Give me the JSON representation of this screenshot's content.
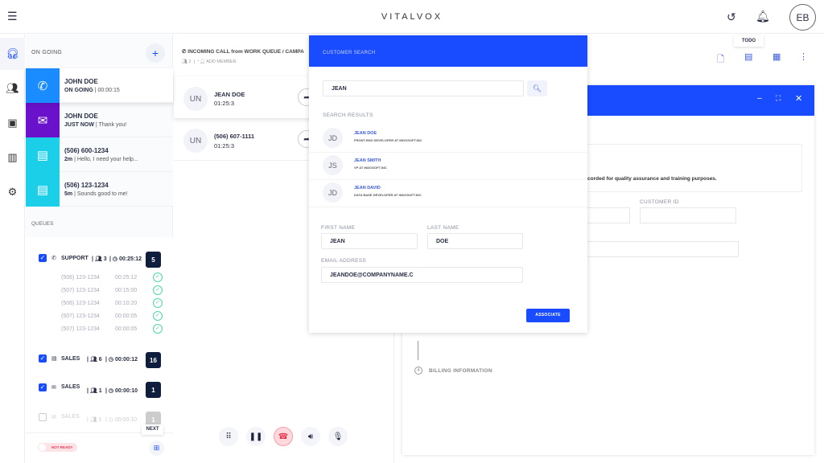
{
  "app": {
    "title": "VITALVOX",
    "avatar": "EB",
    "tooltip_todo": "TODO"
  },
  "ongoing": {
    "title": "ON GOING",
    "items": [
      {
        "name": "JOHN DOE",
        "status": "ON GOING",
        "detail": "00:00:15",
        "color": "#1a8cff",
        "icon": "phone-icon"
      },
      {
        "name": "JOHN DOE",
        "status": "JUST NOW",
        "detail": "Thank you!",
        "color": "#6a11cb",
        "icon": "mail-icon"
      },
      {
        "name": "(506) 600-1234",
        "status": "2m",
        "detail": "Hello, I need your help...",
        "color": "#1ccfe8",
        "icon": "chat-icon"
      },
      {
        "name": "(506) 123-1234",
        "status": "5m",
        "detail": "Sounds good to me!",
        "color": "#1ccfe8",
        "icon": "chat-icon"
      }
    ]
  },
  "queues": {
    "title": "QUEUES",
    "rows": [
      {
        "name": "SUPPORT",
        "agents": "3",
        "time": "00:25:12",
        "count": "5",
        "checked": true
      },
      {
        "name": "SALES",
        "agents": "6",
        "time": "00:00:12",
        "count": "16",
        "checked": true
      },
      {
        "name": "SALES",
        "agents": "1",
        "time": "00:00:10",
        "count": "1",
        "checked": true
      },
      {
        "name": "SALES",
        "agents": "1",
        "time": "00:00:10",
        "count": "1",
        "checked": false
      }
    ],
    "support_calls": [
      {
        "phone": "(506) 123-1234",
        "time": "00:25:12"
      },
      {
        "phone": "(507) 123-1234",
        "time": "00:15:00"
      },
      {
        "phone": "(506) 123-1234",
        "time": "00:10:20"
      },
      {
        "phone": "(507) 123-1234",
        "time": "00:00:05"
      },
      {
        "phone": "(507) 123-1234",
        "time": "00:00:05"
      }
    ]
  },
  "status": {
    "toggle": "NOT READY",
    "next": "NEXT"
  },
  "call": {
    "header": "INCOMING CALL from WORK QUEUE / CAMPA",
    "members": "2",
    "add_member": "ADD MEMBER",
    "participants": [
      {
        "initials": "UN",
        "name": "JEAN DOE",
        "time": "01:25:3"
      },
      {
        "initials": "UN",
        "name": "(506) 607-1111",
        "time": "01:25:3"
      }
    ]
  },
  "search": {
    "title": "CUSTOMER SEARCH",
    "query": "JEAN",
    "results_label": "SEARCH RESULTS",
    "results": [
      {
        "initials": "JD",
        "name": "JEAN DOE",
        "desc": "FRONT-END DEVELOPER AT INDOSOFT.INC"
      },
      {
        "initials": "JS",
        "name": "JEAN SMITH",
        "desc": "VP AT INDOSOFT.INC"
      },
      {
        "initials": "JD",
        "name": "JEAN DAVID",
        "desc": "DATA BASE DEVELOPER AT INDOSOFT.INC"
      }
    ],
    "first_name_label": "FIRST NAME",
    "first_name": "JEAN",
    "last_name_label": "LAST NAME",
    "last_name": "DOE",
    "email_label": "EMAIL ADDRESS",
    "email": "JEANDOE@COMPANYNAME.C",
    "associate": "ASSOCIATE"
  },
  "form": {
    "notice": "corded for quality assurance and training purposes.",
    "customer_id_label": "CUSTOMER ID",
    "step4_num": "4",
    "step4": "BILLING INFORMATION"
  },
  "colors": {
    "accent": "#1a4cff",
    "dark": "#0f1e3d",
    "hangup": "#e53950"
  }
}
